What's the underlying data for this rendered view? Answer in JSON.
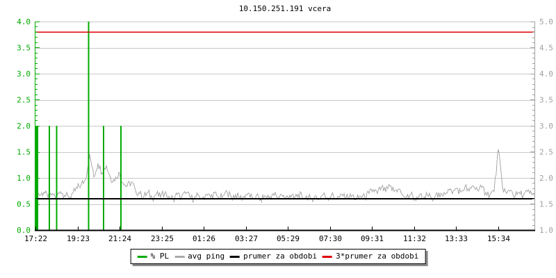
{
  "chart_data": {
    "type": "line",
    "title": "10.150.251.191 vcera",
    "x_axis": {
      "tick_labels": [
        "17:22",
        "19:23",
        "21:24",
        "23:25",
        "01:26",
        "03:27",
        "05:29",
        "07:30",
        "09:31",
        "11:32",
        "13:33",
        "15:34"
      ],
      "tick_interval_min": 121,
      "total_minutes": 1438,
      "color": "#000000"
    },
    "left_axis": {
      "min": 0,
      "max": 4,
      "label_step": 0.5,
      "minor_step": 0.1,
      "tick_labels": [
        "4.0",
        "3.5",
        "3.0",
        "2.5",
        "2.0",
        "1.5",
        "1.0",
        "0.5",
        "0.0"
      ],
      "color": "#00aa00"
    },
    "right_axis": {
      "min": 1,
      "max": 5,
      "label_step": 0.5,
      "minor_step": 0.1,
      "tick_labels": [
        "5.0",
        "4.5",
        "4.0",
        "3.5",
        "3.0",
        "2.5",
        "2.0",
        "1.5",
        "1.0"
      ],
      "color": "#a0a0a0"
    },
    "grid": {
      "color": "#c8c8c8",
      "horizontal_step": 0.5,
      "vertical": false
    },
    "series": [
      {
        "name": "% PL",
        "type": "bars",
        "axis": "left",
        "color": "#00aa00",
        "points": [
          [
            2,
            2
          ],
          [
            6,
            2
          ],
          [
            40,
            2
          ],
          [
            61,
            2
          ],
          [
            153,
            4
          ],
          [
            196,
            2
          ],
          [
            246,
            2
          ]
        ]
      },
      {
        "name": "avg ping",
        "type": "line",
        "axis": "right",
        "color": "#a8a8a8",
        "sample_step_min": 12,
        "values": [
          1.78,
          1.66,
          1.73,
          1.62,
          1.7,
          1.64,
          1.74,
          1.67,
          1.62,
          1.71,
          1.8,
          1.88,
          1.97,
          2.45,
          2.02,
          2.28,
          2.1,
          2.24,
          2.0,
          1.94,
          2.12,
          1.9,
          1.84,
          1.92,
          1.76,
          1.7,
          1.64,
          1.72,
          1.61,
          1.69,
          1.63,
          1.71,
          1.65,
          1.6,
          1.68,
          1.62,
          1.7,
          1.64,
          1.59,
          1.67,
          1.61,
          1.69,
          1.63,
          1.71,
          1.6,
          1.66,
          1.72,
          1.62,
          1.68,
          1.6,
          1.65,
          1.71,
          1.61,
          1.67,
          1.59,
          1.66,
          1.62,
          1.7,
          1.63,
          1.68,
          1.61,
          1.67,
          1.6,
          1.69,
          1.62,
          1.66,
          1.59,
          1.65,
          1.61,
          1.68,
          1.62,
          1.67,
          1.6,
          1.64,
          1.7,
          1.61,
          1.66,
          1.59,
          1.65,
          1.62,
          1.7,
          1.78,
          1.7,
          1.82,
          1.73,
          1.84,
          1.74,
          1.79,
          1.68,
          1.63,
          1.69,
          1.61,
          1.66,
          1.6,
          1.67,
          1.62,
          1.68,
          1.63,
          1.72,
          1.78,
          1.7,
          1.8,
          1.73,
          1.83,
          1.75,
          1.85,
          1.76,
          1.82,
          1.72,
          1.68,
          1.74,
          2.55,
          1.82,
          1.7,
          1.77,
          1.64,
          1.73,
          1.66,
          1.74,
          1.68
        ]
      },
      {
        "name": "prumer za obdobi",
        "type": "hline",
        "axis": "right",
        "color": "#000000",
        "value": 1.6
      },
      {
        "name": "3*prumer za obdobi",
        "type": "hline",
        "axis": "right",
        "color": "#e00000",
        "value": 4.8
      }
    ],
    "legend": {
      "position": "bottom",
      "items": [
        {
          "label": "% PL",
          "color": "#00aa00"
        },
        {
          "label": "avg ping",
          "color": "#a8a8a8"
        },
        {
          "label": "prumer za obdobi",
          "color": "#000000"
        },
        {
          "label": "3*prumer za obdobi",
          "color": "#e00000"
        }
      ]
    }
  },
  "colors": {
    "background": "#ffffff",
    "legend_shadow": "#8c8c8c",
    "x_axis_line": "#000000"
  }
}
